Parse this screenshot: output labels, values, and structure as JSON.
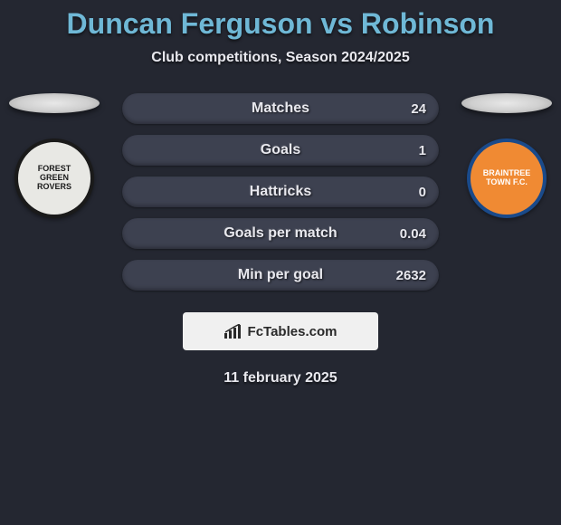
{
  "colors": {
    "background": "#242731",
    "title": "#6fb8d6",
    "subtitle": "#e8e8ee",
    "pill_bg": "#3d4150",
    "pill_text": "#e8e8ee",
    "brand_bg": "#f0f0f0",
    "brand_text": "#2a2a2a",
    "date_text": "#e8e8ee"
  },
  "header": {
    "title": "Duncan Ferguson vs Robinson",
    "title_fontsize": 32,
    "subtitle": "Club competitions, Season 2024/2025",
    "subtitle_fontsize": 16
  },
  "players": {
    "left": {
      "crest_label": "FOREST GREEN ROVERS",
      "crest_bg": "#e8e8e4",
      "crest_border": "#1a1a1a",
      "crest_text_color": "#1a1a1a"
    },
    "right": {
      "crest_label": "BRAINTREE TOWN F.C.",
      "crest_bg": "#f08a33",
      "crest_border": "#1a4a8a",
      "crest_text_color": "#ffffff"
    }
  },
  "stats": {
    "label_fontsize": 16,
    "value_fontsize": 15,
    "rows": [
      {
        "label": "Matches",
        "left": "",
        "right": "24"
      },
      {
        "label": "Goals",
        "left": "",
        "right": "1"
      },
      {
        "label": "Hattricks",
        "left": "",
        "right": "0"
      },
      {
        "label": "Goals per match",
        "left": "",
        "right": "0.04"
      },
      {
        "label": "Min per goal",
        "left": "",
        "right": "2632"
      }
    ]
  },
  "brand": {
    "text": "FcTables.com",
    "fontsize": 15
  },
  "date": {
    "text": "11 february 2025",
    "fontsize": 16
  }
}
